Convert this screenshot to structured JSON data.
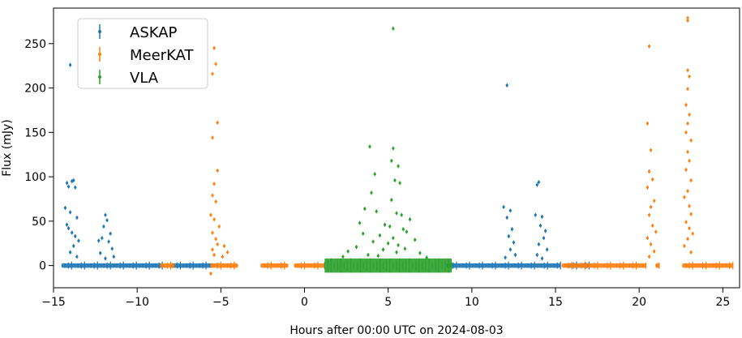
{
  "chart_data": {
    "type": "scatter",
    "title": "",
    "xlabel": "Hours after 00:00 UTC on 2024-08-03",
    "ylabel": "Flux (mJy)",
    "xlim": [
      -15,
      26
    ],
    "ylim": [
      -25,
      290
    ],
    "xticks": [
      -15,
      -10,
      -5,
      0,
      5,
      10,
      15,
      20,
      25
    ],
    "yticks": [
      0,
      50,
      100,
      150,
      200,
      250
    ],
    "xtick_labels": [
      "−15",
      "−10",
      "−5",
      "0",
      "5",
      "10",
      "15",
      "20",
      "25"
    ],
    "ytick_labels": [
      "0",
      "50",
      "100",
      "150",
      "200",
      "250"
    ],
    "grid": false,
    "legend_position": "top-left",
    "series": [
      {
        "name": "ASKAP",
        "color": "#1f77b4",
        "baseline_segments": [
          [
            -14.5,
            -8.5
          ],
          [
            -8.0,
            -5.5
          ],
          [
            8.5,
            15.3
          ],
          [
            15.7,
            17.0
          ]
        ],
        "points": [
          [
            -14.0,
            226
          ],
          [
            -13.8,
            96
          ],
          [
            -13.9,
            95
          ],
          [
            -14.2,
            93
          ],
          [
            -14.1,
            89
          ],
          [
            -13.7,
            88
          ],
          [
            -14.3,
            65
          ],
          [
            -14.0,
            60
          ],
          [
            -13.6,
            54
          ],
          [
            -14.2,
            46
          ],
          [
            -14.1,
            42
          ],
          [
            -13.9,
            37
          ],
          [
            -13.7,
            33
          ],
          [
            -13.5,
            28
          ],
          [
            -13.8,
            22
          ],
          [
            -14.0,
            15
          ],
          [
            -13.6,
            10
          ],
          [
            -12.3,
            28
          ],
          [
            -12.1,
            31
          ],
          [
            -11.9,
            57
          ],
          [
            -11.8,
            51
          ],
          [
            -12.0,
            44
          ],
          [
            -11.6,
            36
          ],
          [
            -11.7,
            27
          ],
          [
            -11.5,
            19
          ],
          [
            -12.2,
            14
          ],
          [
            -11.4,
            10
          ],
          [
            -11.9,
            8
          ],
          [
            12.1,
            203
          ],
          [
            11.9,
            66
          ],
          [
            12.3,
            62
          ],
          [
            12.1,
            54
          ],
          [
            12.4,
            41
          ],
          [
            12.2,
            33
          ],
          [
            12.5,
            26
          ],
          [
            12.3,
            18
          ],
          [
            12.6,
            12
          ],
          [
            12.0,
            9
          ],
          [
            14.0,
            94
          ],
          [
            13.9,
            91
          ],
          [
            13.8,
            57
          ],
          [
            14.2,
            55
          ],
          [
            14.1,
            45
          ],
          [
            14.4,
            39
          ],
          [
            14.3,
            31
          ],
          [
            14.0,
            24
          ],
          [
            14.5,
            18
          ],
          [
            13.9,
            12
          ],
          [
            14.2,
            8
          ]
        ]
      },
      {
        "name": "MeerKAT",
        "color": "#ff7f0e",
        "baseline_segments": [
          [
            -8.6,
            -7.8
          ],
          [
            -5.6,
            -4.0
          ],
          [
            -2.6,
            -1.0
          ],
          [
            -0.6,
            1.2
          ],
          [
            15.4,
            20.4
          ],
          [
            21.0,
            21.2
          ],
          [
            22.6,
            25.6
          ]
        ],
        "points": [
          [
            -5.4,
            245
          ],
          [
            -5.3,
            227
          ],
          [
            -5.5,
            216
          ],
          [
            -5.2,
            161
          ],
          [
            -5.5,
            144
          ],
          [
            -5.2,
            107
          ],
          [
            -5.4,
            92
          ],
          [
            -5.5,
            79
          ],
          [
            -5.3,
            72
          ],
          [
            -5.6,
            57
          ],
          [
            -5.4,
            52
          ],
          [
            -5.1,
            44
          ],
          [
            -5.5,
            37
          ],
          [
            -5.3,
            30
          ],
          [
            -5.2,
            24
          ],
          [
            -5.5,
            18
          ],
          [
            -5.4,
            12
          ],
          [
            -5.6,
            -9
          ],
          [
            -4.8,
            22
          ],
          [
            -4.6,
            15
          ],
          [
            -4.9,
            10
          ],
          [
            20.6,
            247
          ],
          [
            20.5,
            160
          ],
          [
            20.7,
            130
          ],
          [
            20.6,
            106
          ],
          [
            20.8,
            97
          ],
          [
            20.5,
            88
          ],
          [
            20.9,
            73
          ],
          [
            20.7,
            66
          ],
          [
            20.6,
            57
          ],
          [
            20.8,
            45
          ],
          [
            21.0,
            38
          ],
          [
            20.5,
            31
          ],
          [
            20.7,
            24
          ],
          [
            20.9,
            16
          ],
          [
            20.6,
            10
          ],
          [
            22.9,
            279
          ],
          [
            22.9,
            276
          ],
          [
            22.9,
            220
          ],
          [
            23.0,
            213
          ],
          [
            22.9,
            199
          ],
          [
            22.8,
            181
          ],
          [
            23.0,
            170
          ],
          [
            22.9,
            160
          ],
          [
            22.8,
            150
          ],
          [
            23.1,
            141
          ],
          [
            22.9,
            128
          ],
          [
            23.0,
            118
          ],
          [
            22.8,
            108
          ],
          [
            23.1,
            96
          ],
          [
            22.9,
            84
          ],
          [
            22.7,
            77
          ],
          [
            23.0,
            67
          ],
          [
            23.1,
            58
          ],
          [
            22.8,
            49
          ],
          [
            23.0,
            42
          ],
          [
            23.2,
            36
          ],
          [
            22.9,
            30
          ],
          [
            22.7,
            22
          ],
          [
            23.1,
            15
          ]
        ]
      },
      {
        "name": "VLA",
        "color": "#2ca02c",
        "baseline_segments": [
          [
            1.2,
            8.8
          ]
        ],
        "points": [
          [
            5.3,
            267
          ],
          [
            3.9,
            134
          ],
          [
            5.3,
            132
          ],
          [
            5.2,
            118
          ],
          [
            5.6,
            112
          ],
          [
            4.2,
            103
          ],
          [
            5.4,
            96
          ],
          [
            5.7,
            93
          ],
          [
            4.0,
            82
          ],
          [
            5.2,
            74
          ],
          [
            3.6,
            64
          ],
          [
            4.3,
            61
          ],
          [
            5.5,
            59
          ],
          [
            5.8,
            57
          ],
          [
            6.3,
            52
          ],
          [
            3.3,
            48
          ],
          [
            4.8,
            46
          ],
          [
            5.1,
            44
          ],
          [
            5.9,
            41
          ],
          [
            6.1,
            38
          ],
          [
            3.5,
            36
          ],
          [
            4.5,
            34
          ],
          [
            5.3,
            31
          ],
          [
            6.6,
            29
          ],
          [
            4.1,
            27
          ],
          [
            5.0,
            25
          ],
          [
            5.6,
            23
          ],
          [
            3.1,
            21
          ],
          [
            6.0,
            19
          ],
          [
            4.7,
            18
          ],
          [
            2.6,
            16
          ],
          [
            5.5,
            15
          ],
          [
            6.9,
            14
          ],
          [
            3.8,
            12
          ],
          [
            4.4,
            11
          ],
          [
            2.3,
            10
          ],
          [
            7.3,
            9
          ]
        ]
      }
    ]
  }
}
